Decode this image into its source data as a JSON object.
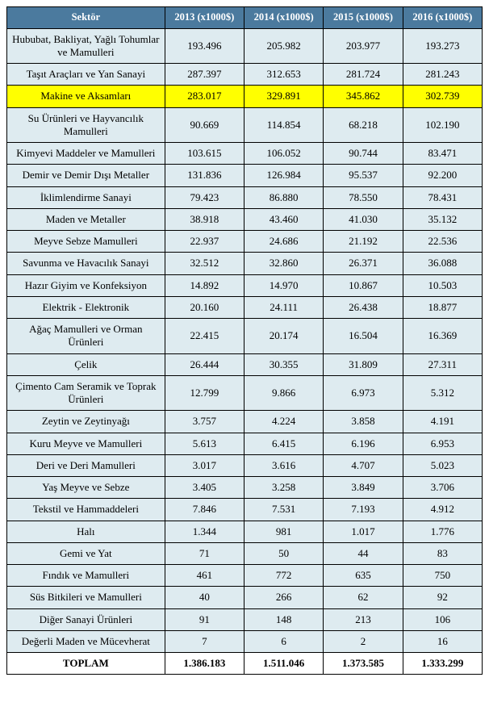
{
  "table": {
    "columns": [
      {
        "label": "Sektör"
      },
      {
        "label": "2013 (x1000$)"
      },
      {
        "label": "2014 (x1000$)"
      },
      {
        "label": "2015 (x1000$)"
      },
      {
        "label": "2016 (x1000$)"
      }
    ],
    "rows": [
      {
        "name": "Hububat, Bakliyat, Yağlı Tohumlar ve Mamulleri",
        "y2013": "193.496",
        "y2014": "205.982",
        "y2015": "203.977",
        "y2016": "193.273",
        "highlight": false
      },
      {
        "name": "Taşıt Araçları ve Yan Sanayi",
        "y2013": "287.397",
        "y2014": "312.653",
        "y2015": "281.724",
        "y2016": "281.243",
        "highlight": false
      },
      {
        "name": "Makine ve Aksamları",
        "y2013": "283.017",
        "y2014": "329.891",
        "y2015": "345.862",
        "y2016": "302.739",
        "highlight": true
      },
      {
        "name": "Su Ürünleri ve Hayvancılık Mamulleri",
        "y2013": "90.669",
        "y2014": "114.854",
        "y2015": "68.218",
        "y2016": "102.190",
        "highlight": false
      },
      {
        "name": "Kimyevi Maddeler ve Mamulleri",
        "y2013": "103.615",
        "y2014": "106.052",
        "y2015": "90.744",
        "y2016": "83.471",
        "highlight": false
      },
      {
        "name": "Demir ve Demir Dışı Metaller",
        "y2013": "131.836",
        "y2014": "126.984",
        "y2015": "95.537",
        "y2016": "92.200",
        "highlight": false
      },
      {
        "name": "İklimlendirme Sanayi",
        "y2013": "79.423",
        "y2014": "86.880",
        "y2015": "78.550",
        "y2016": "78.431",
        "highlight": false
      },
      {
        "name": "Maden ve Metaller",
        "y2013": "38.918",
        "y2014": "43.460",
        "y2015": "41.030",
        "y2016": "35.132",
        "highlight": false
      },
      {
        "name": "Meyve Sebze Mamulleri",
        "y2013": "22.937",
        "y2014": "24.686",
        "y2015": "21.192",
        "y2016": "22.536",
        "highlight": false
      },
      {
        "name": "Savunma ve Havacılık Sanayi",
        "y2013": "32.512",
        "y2014": "32.860",
        "y2015": "26.371",
        "y2016": "36.088",
        "highlight": false
      },
      {
        "name": "Hazır Giyim ve Konfeksiyon",
        "y2013": "14.892",
        "y2014": "14.970",
        "y2015": "10.867",
        "y2016": "10.503",
        "highlight": false
      },
      {
        "name": "Elektrik - Elektronik",
        "y2013": "20.160",
        "y2014": "24.111",
        "y2015": "26.438",
        "y2016": "18.877",
        "highlight": false
      },
      {
        "name": "Ağaç Mamulleri ve Orman Ürünleri",
        "y2013": "22.415",
        "y2014": "20.174",
        "y2015": "16.504",
        "y2016": "16.369",
        "highlight": false
      },
      {
        "name": "Çelik",
        "y2013": "26.444",
        "y2014": "30.355",
        "y2015": "31.809",
        "y2016": "27.311",
        "highlight": false
      },
      {
        "name": "Çimento Cam Seramik ve Toprak Ürünleri",
        "y2013": "12.799",
        "y2014": "9.866",
        "y2015": "6.973",
        "y2016": "5.312",
        "highlight": false
      },
      {
        "name": "Zeytin ve Zeytinyağı",
        "y2013": "3.757",
        "y2014": "4.224",
        "y2015": "3.858",
        "y2016": "4.191",
        "highlight": false
      },
      {
        "name": "Kuru Meyve ve Mamulleri",
        "y2013": "5.613",
        "y2014": "6.415",
        "y2015": "6.196",
        "y2016": "6.953",
        "highlight": false
      },
      {
        "name": "Deri ve Deri Mamulleri",
        "y2013": "3.017",
        "y2014": "3.616",
        "y2015": "4.707",
        "y2016": "5.023",
        "highlight": false
      },
      {
        "name": "Yaş Meyve ve Sebze",
        "y2013": "3.405",
        "y2014": "3.258",
        "y2015": "3.849",
        "y2016": "3.706",
        "highlight": false
      },
      {
        "name": "Tekstil ve Hammaddeleri",
        "y2013": "7.846",
        "y2014": "7.531",
        "y2015": "7.193",
        "y2016": "4.912",
        "highlight": false
      },
      {
        "name": "Halı",
        "y2013": "1.344",
        "y2014": "981",
        "y2015": "1.017",
        "y2016": "1.776",
        "highlight": false
      },
      {
        "name": "Gemi ve Yat",
        "y2013": "71",
        "y2014": "50",
        "y2015": "44",
        "y2016": "83",
        "highlight": false
      },
      {
        "name": "Fındık ve Mamulleri",
        "y2013": "461",
        "y2014": "772",
        "y2015": "635",
        "y2016": "750",
        "highlight": false
      },
      {
        "name": "Süs Bitkileri ve Mamulleri",
        "y2013": "40",
        "y2014": "266",
        "y2015": "62",
        "y2016": "92",
        "highlight": false
      },
      {
        "name": "Diğer Sanayi Ürünleri",
        "y2013": "91",
        "y2014": "148",
        "y2015": "213",
        "y2016": "106",
        "highlight": false
      },
      {
        "name": "Değerli Maden ve Mücevherat",
        "y2013": "7",
        "y2014": "6",
        "y2015": "2",
        "y2016": "16",
        "highlight": false
      }
    ],
    "total": {
      "name": "TOPLAM",
      "y2013": "1.386.183",
      "y2014": "1.511.046",
      "y2015": "1.373.585",
      "y2016": "1.333.299"
    },
    "header_bg": "#4b7a9e",
    "header_fg": "#ffffff",
    "cell_bg": "#deebf0",
    "highlight_bg": "#ffff00",
    "total_bg": "#ffffff",
    "border_color": "#000000",
    "font_family": "Times New Roman",
    "header_fontsize": 12.5,
    "cell_fontsize": 13
  }
}
